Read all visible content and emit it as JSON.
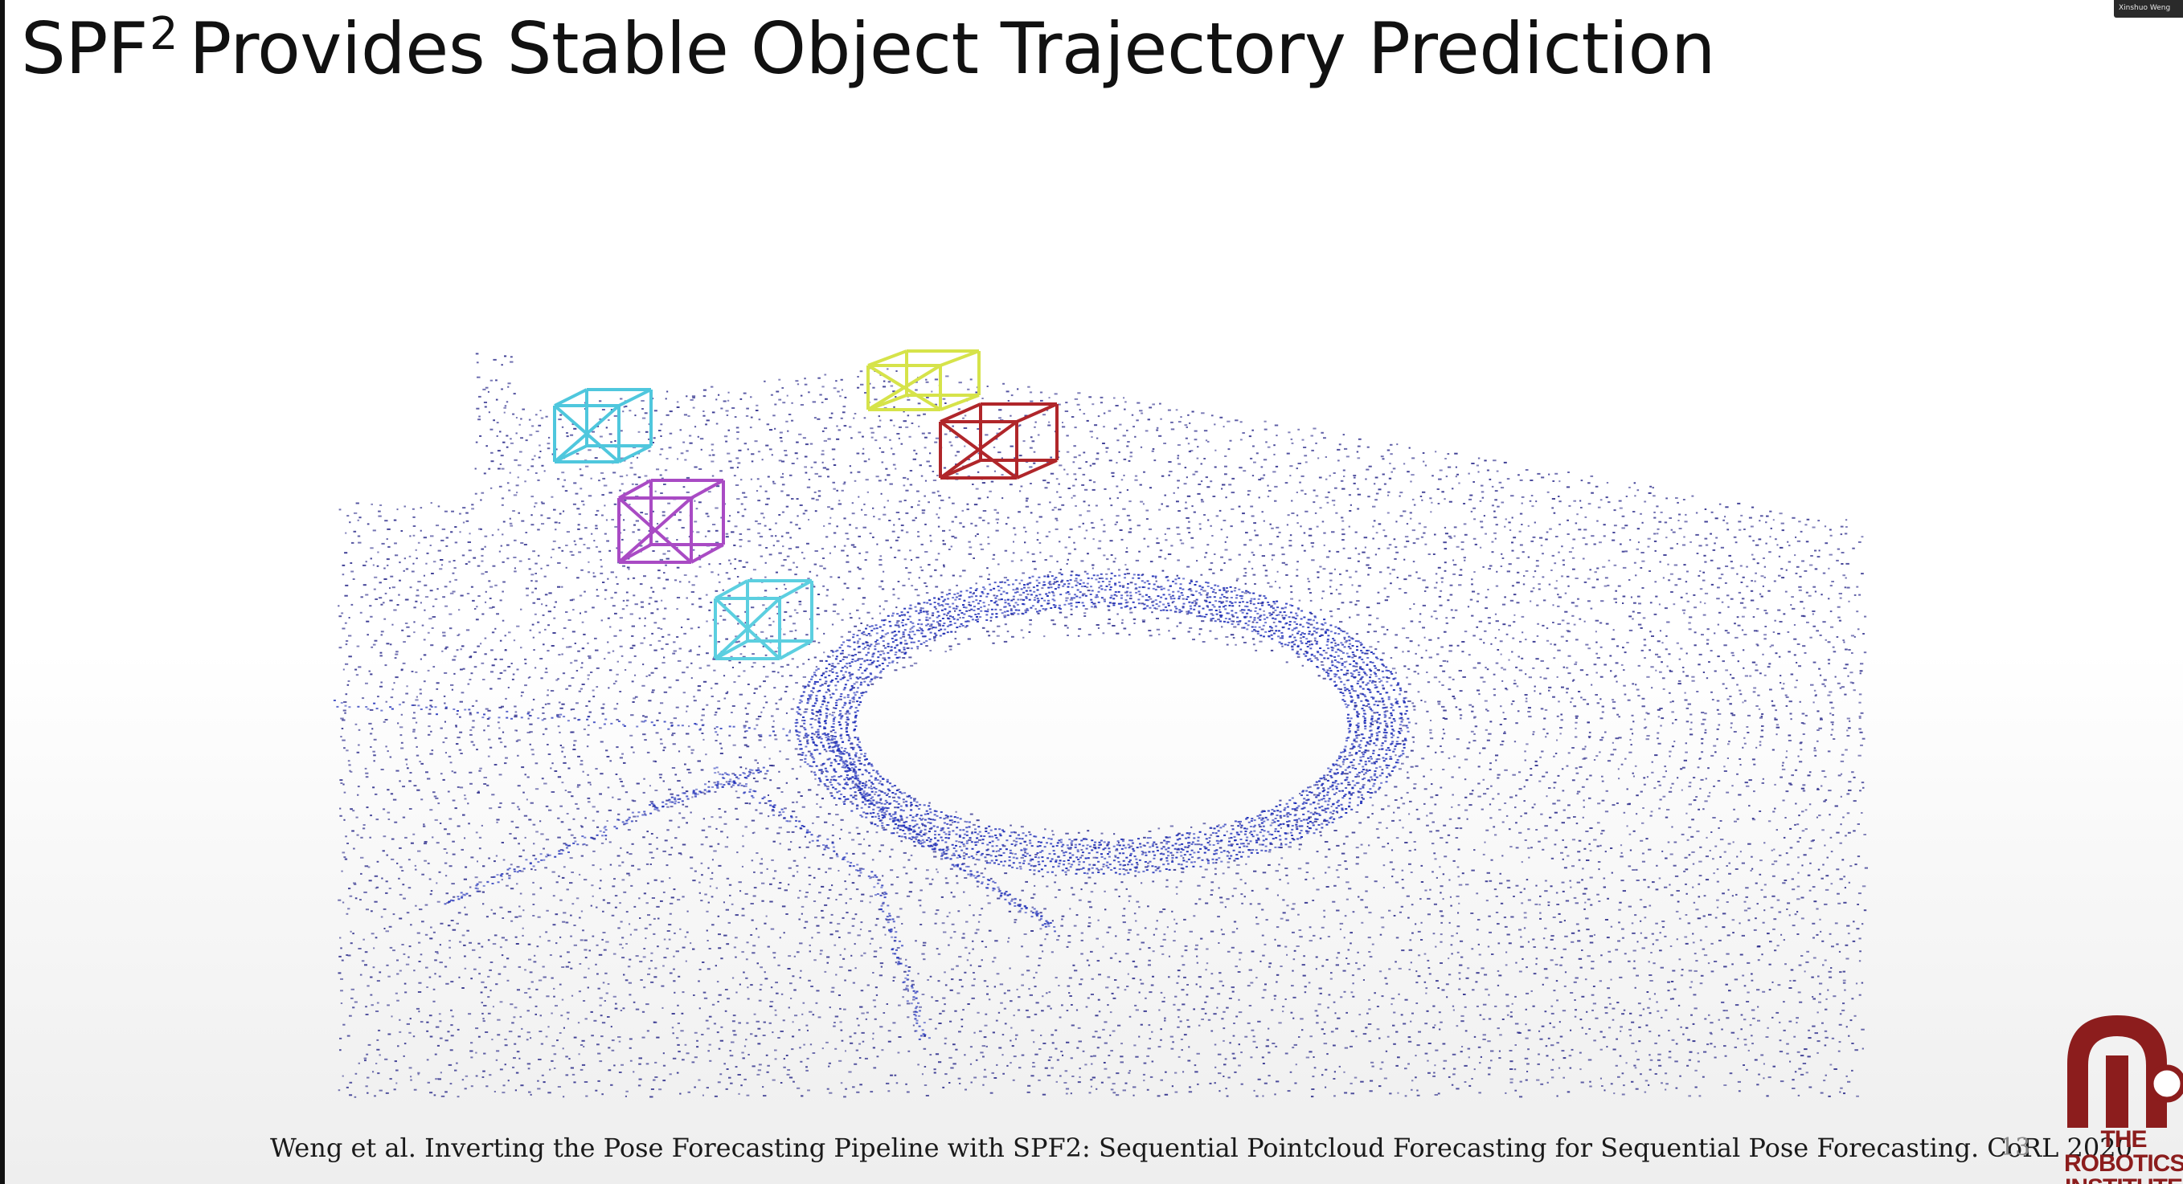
{
  "slide": {
    "title_main": "SPF",
    "title_superscript": "2",
    "title_rest": "Provides Stable Object Trajectory Prediction",
    "citation": "Weng et al. Inverting the Pose Forecasting Pipeline with SPF2: Sequential Pointcloud Forecasting for Sequential Pose Forecasting. CoRL 2020",
    "page_number": "13"
  },
  "video_thumbnail": {
    "label": "Xinshuo Weng"
  },
  "logo": {
    "line1": "THE",
    "line2": "ROBOTICS",
    "line3": "INSTITUTE",
    "color": "#8c1d1d"
  },
  "figure": {
    "point_color": "#2a2a8a",
    "dense_color": "#1f2fb8",
    "boxes": [
      {
        "name": "cyan-box-1",
        "color": "#4fc7dd"
      },
      {
        "name": "magenta-box",
        "color": "#a94bc4"
      },
      {
        "name": "cyan-box-2",
        "color": "#5ccfe0"
      },
      {
        "name": "yellow-box",
        "color": "#d6e34a"
      },
      {
        "name": "red-box",
        "color": "#b0262a"
      }
    ]
  }
}
